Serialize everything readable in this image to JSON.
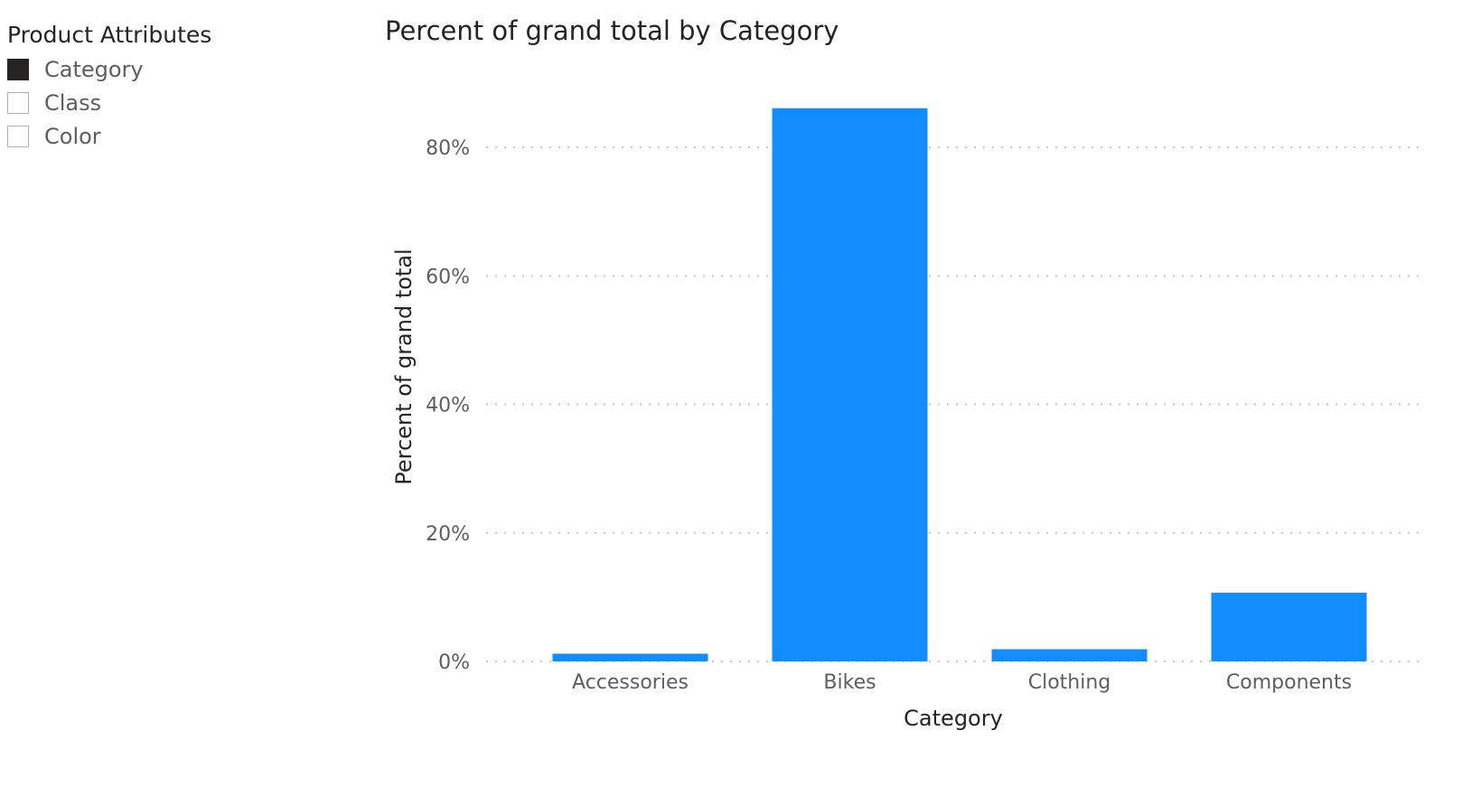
{
  "slicer": {
    "title": "Product Attributes",
    "items": [
      {
        "label": "Category",
        "checked": true
      },
      {
        "label": "Class",
        "checked": false
      },
      {
        "label": "Color",
        "checked": false
      }
    ]
  },
  "colors": {
    "bar": "#118DFF",
    "gridline": "#C8C6C4",
    "checked_box": "#252423"
  },
  "chart_data": {
    "type": "bar",
    "title": "Percent of grand total by Category",
    "xlabel": "Category",
    "ylabel": "Percent of grand total",
    "categories": [
      "Accessories",
      "Bikes",
      "Clothing",
      "Components"
    ],
    "values": [
      1.2,
      86.1,
      1.9,
      10.7
    ],
    "ylim": [
      0,
      90
    ],
    "yticks": [
      0,
      20,
      40,
      60,
      80
    ],
    "ytick_labels": [
      "0%",
      "20%",
      "40%",
      "60%",
      "80%"
    ],
    "grid": true,
    "legend": "none"
  }
}
